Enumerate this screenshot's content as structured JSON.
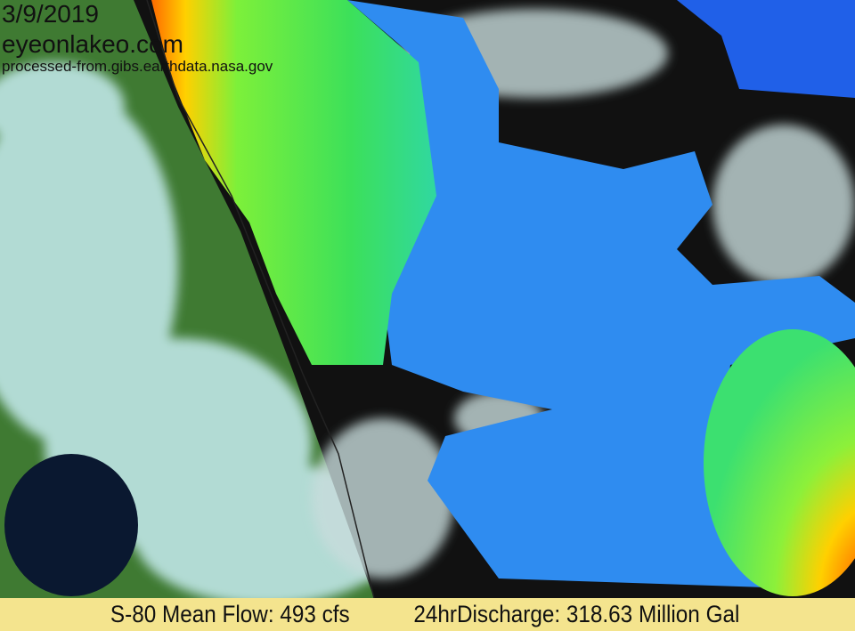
{
  "overlay": {
    "date": "3/9/2019",
    "site": "eyeonlakeo.com",
    "source": "processed-from.gibs.earthdata.nasa.gov"
  },
  "footer": {
    "mean_flow": "S-80 Mean Flow: 493 cfs",
    "discharge": "24hrDischarge: 318.63 Million Gal"
  },
  "colors": {
    "footer_bg": "#f4e48e",
    "land": "#3f7a32",
    "ocean_low": "#1e90ff",
    "ocean_mid": "#4cd94c",
    "ocean_high": "#e8231a",
    "cloud": "#bfe6e6"
  }
}
